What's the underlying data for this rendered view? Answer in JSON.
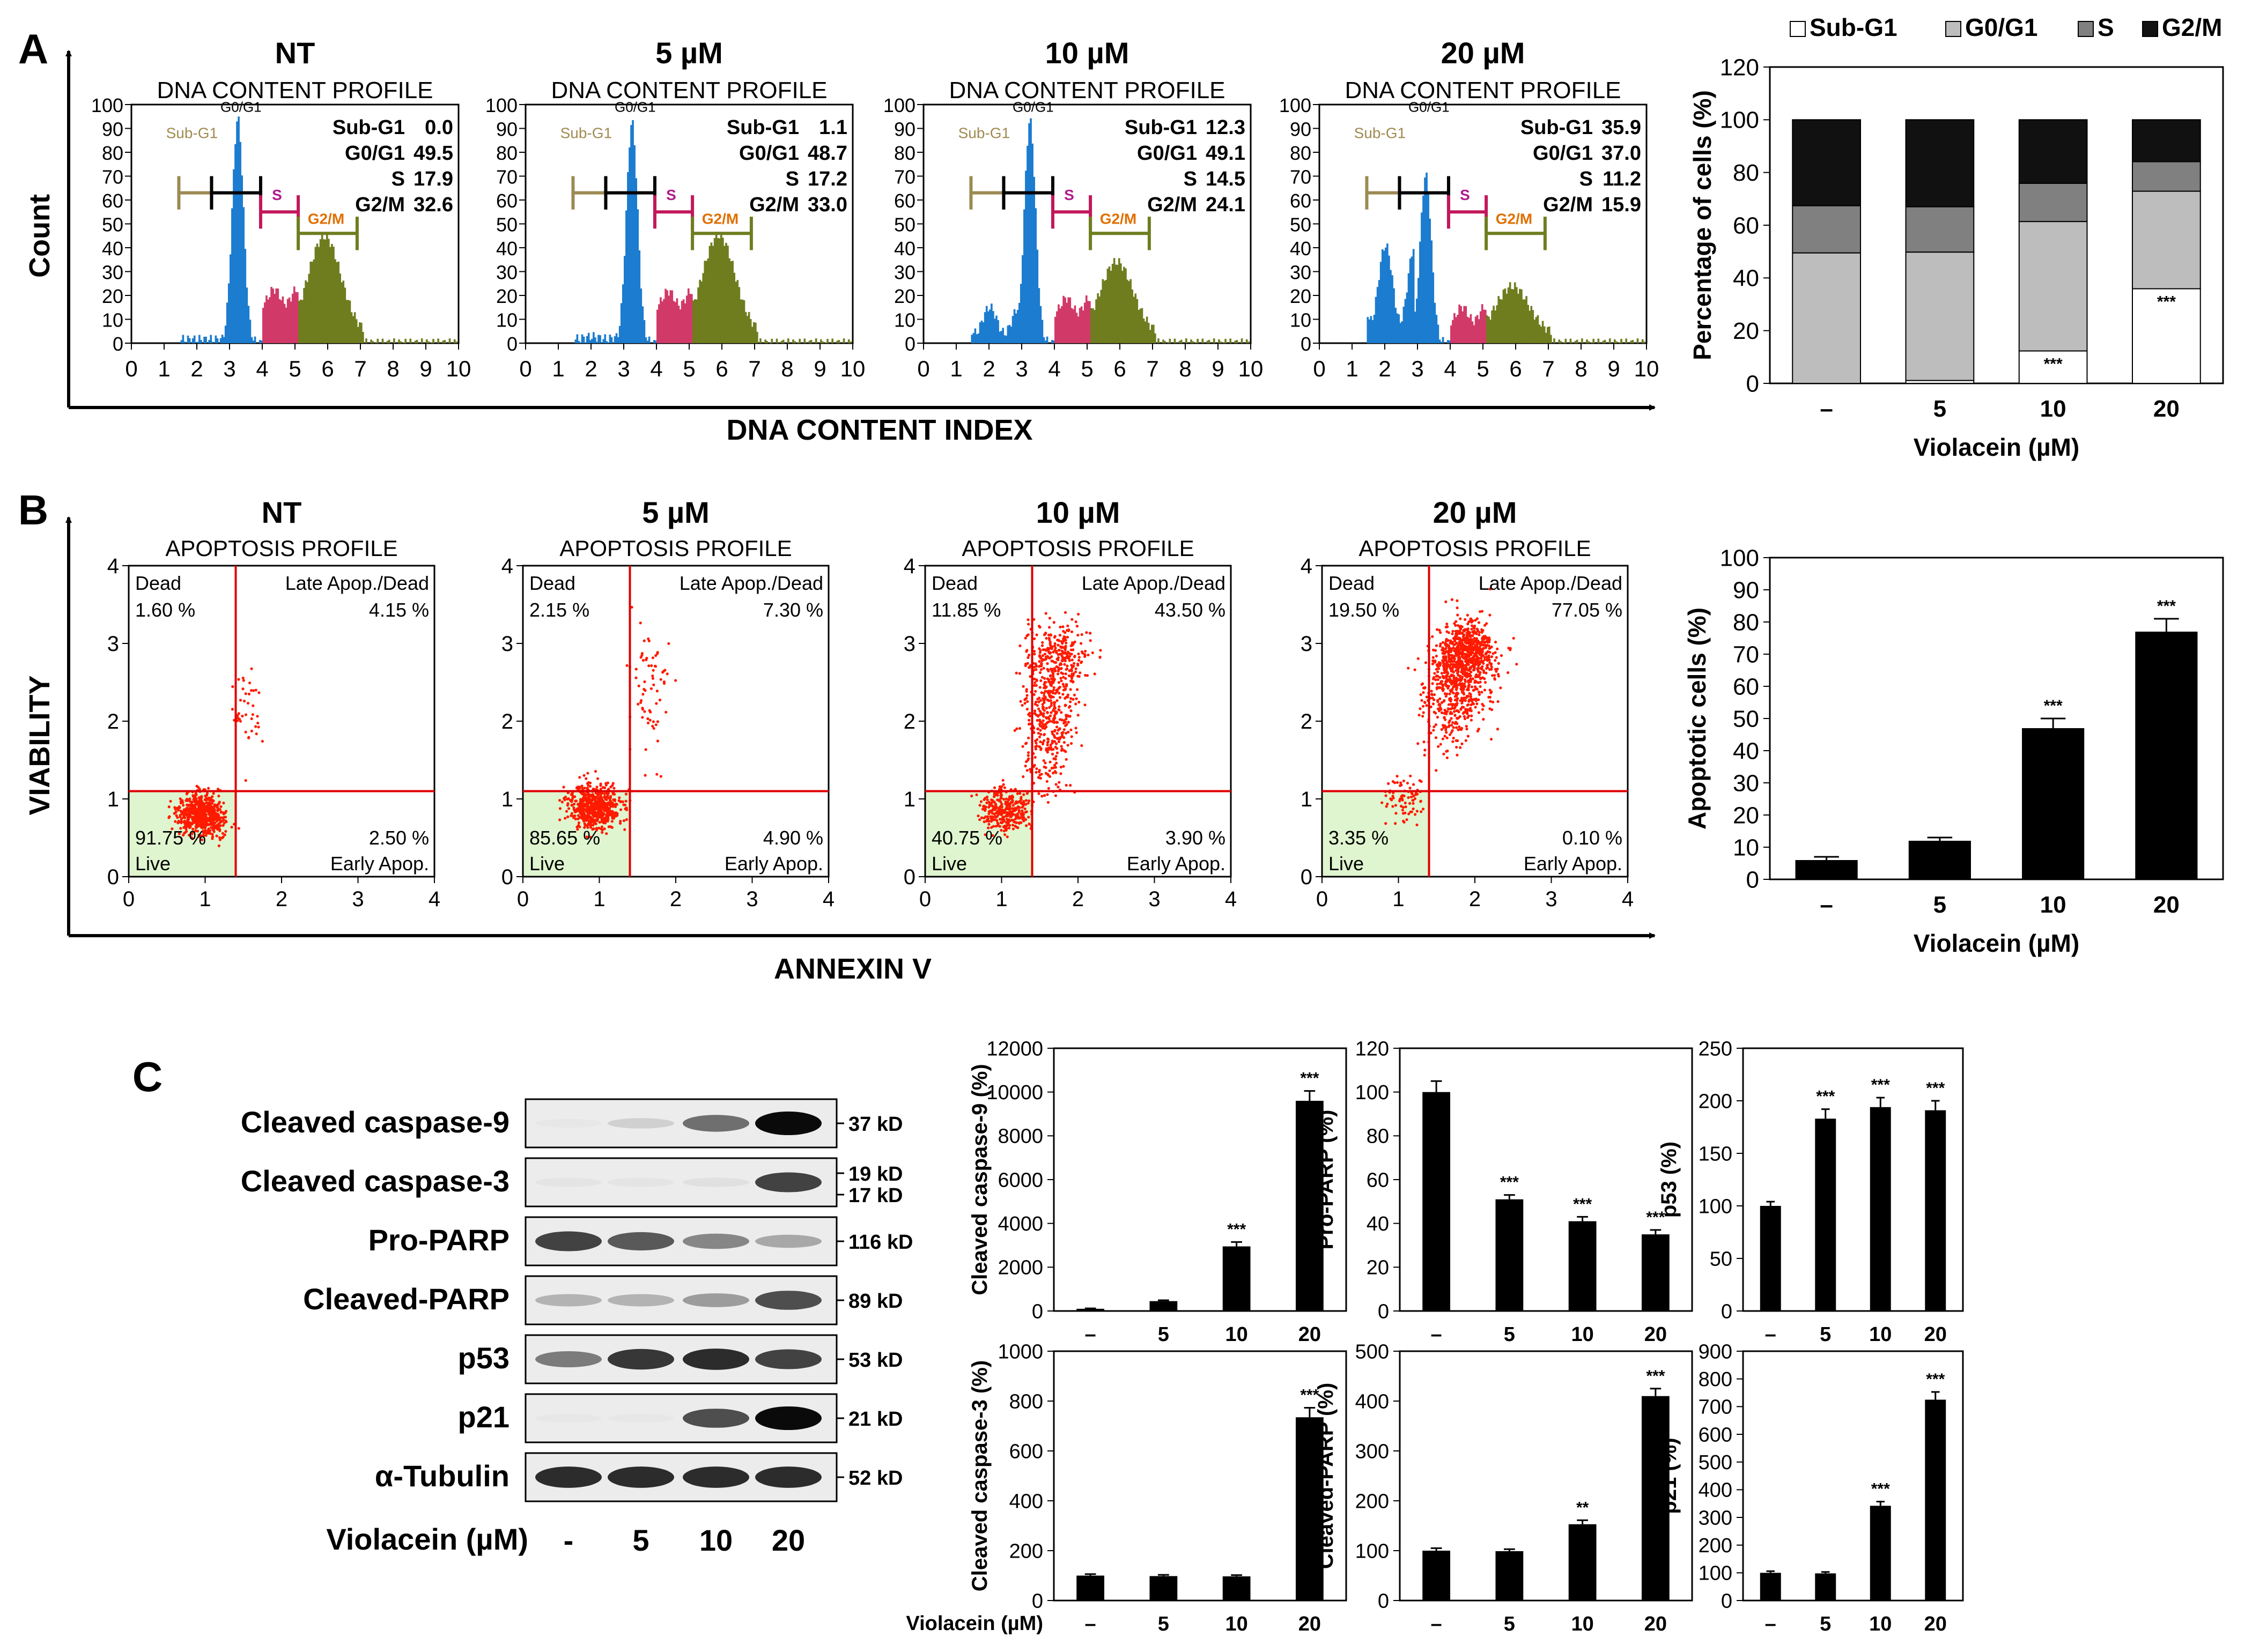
{
  "colors": {
    "subg1": "#1c7ccf",
    "g0g1": "#1c7ccf",
    "s_phase": "#d13a68",
    "g2m": "#6f7d1f",
    "subg1_bracket": "#9c8a52",
    "g0g1_bracket": "#000000",
    "s_bracket": "#c2185b",
    "g2m_bracket": "#6f7d1f",
    "subg1_label": "#a08a50",
    "s_label": "#b01a8a",
    "g2m_label": "#e07000",
    "scatter": "#ff1a00",
    "quad_line": "#e00000",
    "live_fill": "#dff5cf",
    "stack_subg1": "#ffffff",
    "stack_g0g1": "#bdbdbd",
    "stack_s": "#808080",
    "stack_g2m": "#111111"
  },
  "panel_labels": {
    "a": "A",
    "b": "B",
    "c": "C"
  },
  "panel_a": {
    "ylabel": "Count",
    "xlabel": "DNA CONTENT INDEX",
    "profile_title": "DNA CONTENT PROFILE",
    "x_ticks": [
      "0",
      "1",
      "2",
      "3",
      "4",
      "5",
      "6",
      "7",
      "8",
      "9",
      "10"
    ],
    "y_ticks": [
      "0",
      "10",
      "20",
      "30",
      "40",
      "50",
      "60",
      "70",
      "80",
      "90",
      "100"
    ],
    "peak_label": "G0/G1",
    "subg1_label": "Sub-G1",
    "s_label": "S",
    "g2m_label": "G2/M",
    "stat_names": [
      "Sub-G1",
      "G0/G1",
      "S",
      "G2/M"
    ],
    "histograms": [
      {
        "title": "NT",
        "stats": [
          "0.0",
          "49.5",
          "17.9",
          "32.6"
        ]
      },
      {
        "title": "5 µM",
        "stats": [
          "1.1",
          "48.7",
          "17.2",
          "33.0"
        ]
      },
      {
        "title": "10 µM",
        "stats": [
          "12.3",
          "49.1",
          "14.5",
          "24.1"
        ]
      },
      {
        "title": "20 µM",
        "stats": [
          "35.9",
          "37.0",
          "11.2",
          "15.9"
        ]
      }
    ]
  },
  "chart_data": [
    {
      "type": "bar",
      "stacked": true,
      "id": "cell-cycle-distribution",
      "categories": [
        "–",
        "5",
        "10",
        "20"
      ],
      "series": [
        {
          "name": "Sub-G1",
          "values": [
            0.0,
            1.1,
            12.3,
            35.9
          ]
        },
        {
          "name": "G0/G1",
          "values": [
            49.5,
            48.7,
            49.1,
            37.0
          ]
        },
        {
          "name": "S",
          "values": [
            17.9,
            17.2,
            14.5,
            11.2
          ]
        },
        {
          "name": "G2/M",
          "values": [
            32.6,
            33.0,
            24.1,
            15.9
          ]
        }
      ],
      "annotations": [
        "",
        "",
        "***",
        "***"
      ],
      "xlabel": "Violacein (µM)",
      "ylabel": "Percentage of cells (%)",
      "ylim": [
        0,
        120
      ],
      "yticks": [
        "0",
        "20",
        "40",
        "60",
        "80",
        "100",
        "120"
      ],
      "legend": [
        "Sub-G1",
        "G0/G1",
        "S",
        "G2/M"
      ],
      "legend_position": "top"
    },
    {
      "type": "scatter",
      "id": "apoptosis-profiles",
      "xlabel": "ANNEXIN V",
      "ylabel": "VIABILITY",
      "profile_title": "APOPTOSIS PROFILE",
      "quadrant_labels": [
        "Dead",
        "Late Apop./Dead",
        "Live",
        "Early Apop."
      ],
      "x_ticks": [
        "0",
        "1",
        "2",
        "3",
        "4"
      ],
      "y_ticks": [
        "0",
        "1",
        "2",
        "3",
        "4"
      ],
      "xlim": [
        0,
        4
      ],
      "ylim": [
        0,
        4
      ],
      "gates": {
        "x": 1.4,
        "y": 1.1
      },
      "plots": [
        {
          "title": "NT",
          "dead": "1.60 %",
          "late": "4.15 %",
          "live": "91.75 %",
          "early": "2.50 %"
        },
        {
          "title": "5 µM",
          "dead": "2.15 %",
          "late": "7.30 %",
          "live": "85.65 %",
          "early": "4.90 %"
        },
        {
          "title": "10 µM",
          "dead": "11.85 %",
          "late": "43.50 %",
          "live": "40.75 %",
          "early": "3.90 %"
        },
        {
          "title": "20 µM",
          "dead": "19.50 %",
          "late": "77.05 %",
          "live": "3.35 %",
          "early": "0.10 %"
        }
      ]
    },
    {
      "type": "bar",
      "id": "apoptotic-cells",
      "categories": [
        "–",
        "5",
        "10",
        "20"
      ],
      "values": [
        6,
        12,
        47,
        77
      ],
      "errors": [
        1,
        1,
        3,
        4
      ],
      "annotations": [
        "",
        "",
        "***",
        "***"
      ],
      "xlabel": "Violacein (µM)",
      "ylabel": "Apoptotic cells (%)",
      "ylim": [
        0,
        100
      ],
      "yticks": [
        "0",
        "10",
        "20",
        "30",
        "40",
        "50",
        "60",
        "70",
        "80",
        "90",
        "100"
      ]
    },
    {
      "type": "bar",
      "id": "cleaved-caspase-9",
      "categories": [
        "–",
        "5",
        "10",
        "20"
      ],
      "values": [
        100,
        450,
        2950,
        9600
      ],
      "errors": [
        20,
        40,
        200,
        450
      ],
      "annotations": [
        "",
        "",
        "***",
        "***"
      ],
      "ylabel": "Cleaved caspase-9 (%)",
      "ylim": [
        0,
        12000
      ],
      "yticks": [
        "0",
        "2000",
        "4000",
        "6000",
        "8000",
        "10000",
        "12000"
      ]
    },
    {
      "type": "bar",
      "id": "pro-parp",
      "categories": [
        "–",
        "5",
        "10",
        "20"
      ],
      "values": [
        100,
        51,
        41,
        35
      ],
      "errors": [
        5,
        2,
        2,
        2
      ],
      "annotations": [
        "",
        "***",
        "***",
        "***"
      ],
      "ylabel": "Pro-PARP (%)",
      "ylim": [
        0,
        120
      ],
      "yticks": [
        "0",
        "20",
        "40",
        "60",
        "80",
        "100",
        "120"
      ]
    },
    {
      "type": "bar",
      "id": "p53",
      "categories": [
        "–",
        "5",
        "10",
        "20"
      ],
      "values": [
        100,
        183,
        194,
        191
      ],
      "errors": [
        4,
        9,
        9,
        9
      ],
      "annotations": [
        "",
        "***",
        "***",
        "***"
      ],
      "ylabel": "p53 (%)",
      "ylim": [
        0,
        250
      ],
      "yticks": [
        "0",
        "50",
        "100",
        "150",
        "200",
        "250"
      ]
    },
    {
      "type": "bar",
      "id": "cleaved-caspase-3",
      "categories": [
        "–",
        "5",
        "10",
        "20"
      ],
      "values": [
        100,
        98,
        97,
        735
      ],
      "errors": [
        6,
        5,
        5,
        38
      ],
      "annotations": [
        "",
        "",
        "",
        "***"
      ],
      "xlabel": "Violacein (µM)",
      "ylabel": "Cleaved caspase-3 (%)",
      "ylim": [
        0,
        1000
      ],
      "yticks": [
        "0",
        "200",
        "400",
        "600",
        "800",
        "1000"
      ]
    },
    {
      "type": "bar",
      "id": "cleaved-parp",
      "categories": [
        "–",
        "5",
        "10",
        "20"
      ],
      "values": [
        100,
        99,
        153,
        410
      ],
      "errors": [
        5,
        4,
        8,
        15
      ],
      "annotations": [
        "",
        "",
        "**",
        "***"
      ],
      "ylabel": "Cleaved-PARP (%)",
      "ylim": [
        0,
        500
      ],
      "yticks": [
        "0",
        "100",
        "200",
        "300",
        "400",
        "500"
      ]
    },
    {
      "type": "bar",
      "id": "p21",
      "categories": [
        "–",
        "5",
        "10",
        "20"
      ],
      "values": [
        100,
        98,
        342,
        725
      ],
      "errors": [
        6,
        5,
        15,
        28
      ],
      "annotations": [
        "",
        "",
        "***",
        "***"
      ],
      "ylabel": "p21 (%)",
      "ylim": [
        0,
        900
      ],
      "yticks": [
        "0",
        "100",
        "200",
        "300",
        "400",
        "500",
        "600",
        "700",
        "800",
        "900"
      ]
    }
  ],
  "western_blot": {
    "rows": [
      {
        "label": "Cleaved caspase-9",
        "kd": [
          "37 kD"
        ]
      },
      {
        "label": "Cleaved caspase-3",
        "kd": [
          "19 kD",
          "17 kD"
        ]
      },
      {
        "label": "Pro-PARP",
        "kd": [
          "116 kD"
        ]
      },
      {
        "label": "Cleaved-PARP",
        "kd": [
          "89 kD"
        ]
      },
      {
        "label": "p53",
        "kd": [
          "53 kD"
        ]
      },
      {
        "label": "p21",
        "kd": [
          "21 kD"
        ]
      },
      {
        "label": "α-Tubulin",
        "kd": [
          "52 kD"
        ]
      }
    ],
    "intensity": [
      [
        0.02,
        0.12,
        0.55,
        1.0
      ],
      [
        0.03,
        0.03,
        0.05,
        0.75
      ],
      [
        0.75,
        0.65,
        0.45,
        0.3
      ],
      [
        0.25,
        0.25,
        0.35,
        0.7
      ],
      [
        0.5,
        0.8,
        0.85,
        0.75
      ],
      [
        0.02,
        0.02,
        0.7,
        1.0
      ],
      [
        0.85,
        0.85,
        0.85,
        0.85
      ]
    ],
    "treatment_label": "Violacein (µM)",
    "lanes": [
      "-",
      "5",
      "10",
      "20"
    ]
  }
}
